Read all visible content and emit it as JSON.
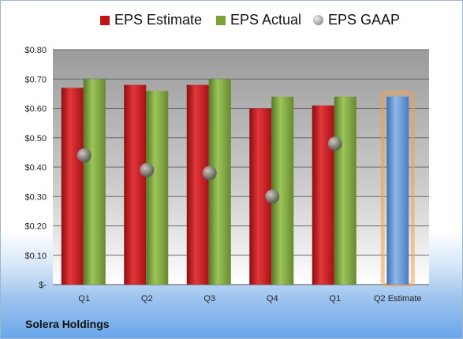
{
  "company": "Solera Holdings",
  "colors": {
    "estimate": "#c0161b",
    "actual": "#7aa23a",
    "gaap": "#9a9a9a",
    "q2_estimate_bar": "#5b8fd0",
    "q2_estimate_glow": "#f0a050"
  },
  "chart_data": {
    "type": "bar",
    "categories": [
      "Q1",
      "Q2",
      "Q3",
      "Q4",
      "Q1",
      "Q2 Estimate"
    ],
    "series": [
      {
        "name": "EPS Estimate",
        "values": [
          0.67,
          0.68,
          0.68,
          0.6,
          0.61,
          null
        ]
      },
      {
        "name": "EPS Actual",
        "values": [
          0.7,
          0.66,
          0.7,
          0.64,
          0.64,
          null
        ]
      },
      {
        "name": "EPS GAAP",
        "values": [
          0.44,
          0.39,
          0.38,
          0.3,
          0.48,
          null
        ]
      }
    ],
    "estimate_bar": {
      "category": "Q2 Estimate",
      "value": 0.64
    },
    "ylim": [
      0,
      0.8
    ],
    "yticks": [
      0,
      0.1,
      0.2,
      0.3,
      0.4,
      0.5,
      0.6,
      0.7,
      0.8
    ],
    "ytick_labels": [
      "$-",
      "$0.10",
      "$0.20",
      "$0.30",
      "$0.40",
      "$0.50",
      "$0.60",
      "$0.70",
      "$0.80"
    ],
    "grid": true,
    "legend_position": "top",
    "title": "",
    "xlabel": "",
    "ylabel": ""
  }
}
